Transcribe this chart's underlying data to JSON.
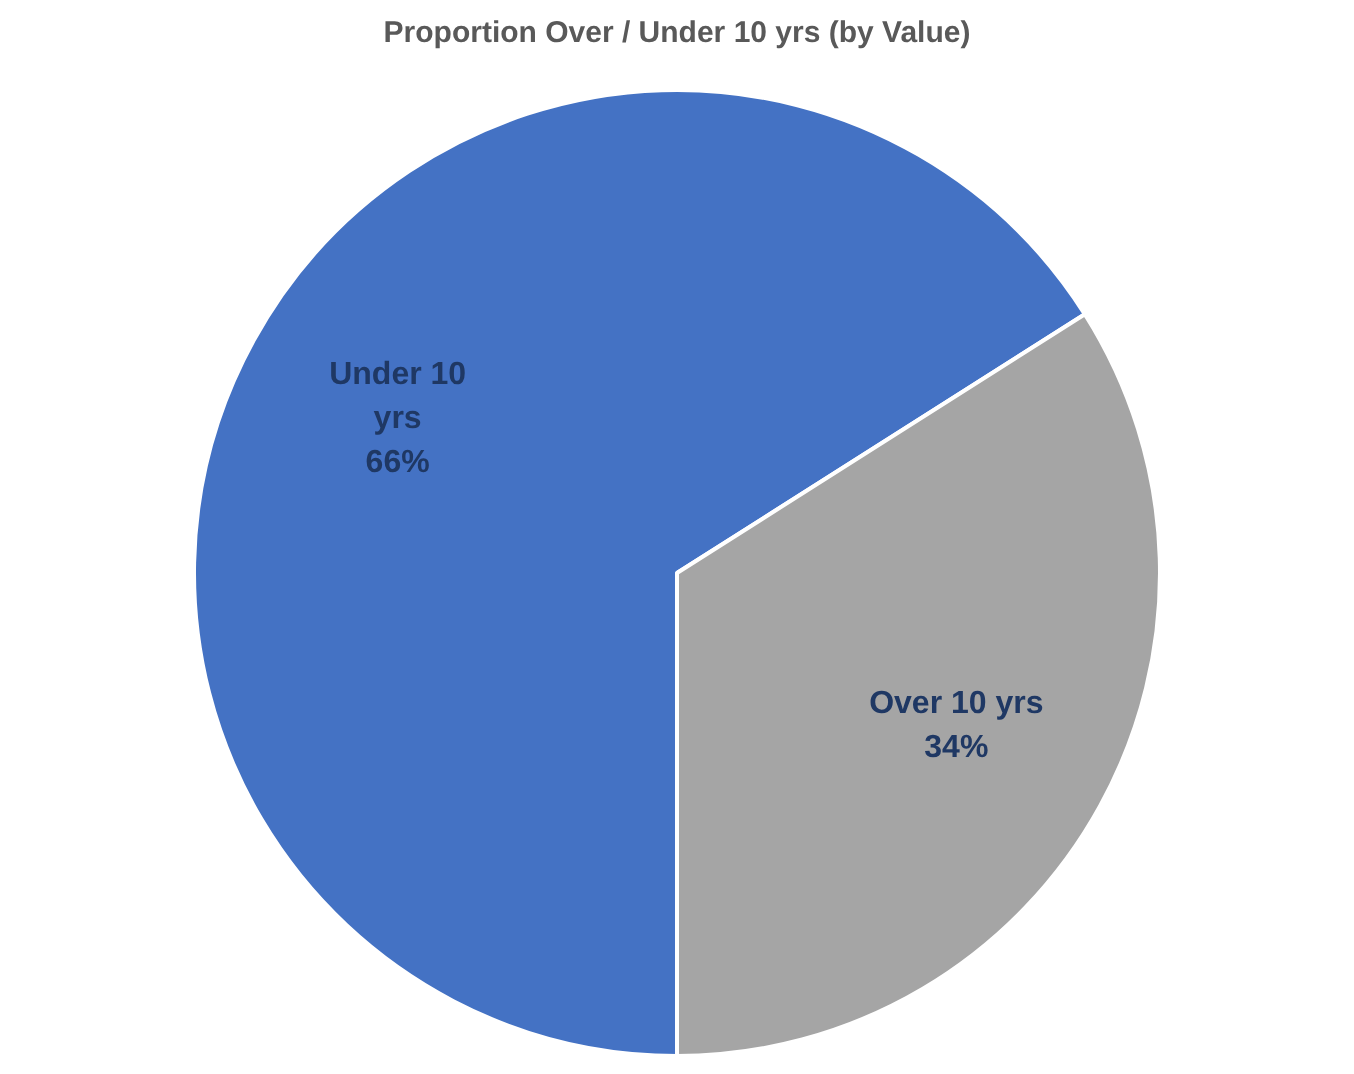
{
  "chart_data": {
    "type": "pie",
    "title": "Proportion Over / Under 10 yrs (by Value)",
    "categories": [
      "Under 10 yrs",
      "Over 10 yrs"
    ],
    "values": [
      66,
      34
    ],
    "value_labels": [
      "66%",
      "34%"
    ],
    "colors": [
      "#4472c4",
      "#a5a5a5"
    ],
    "legend": false
  }
}
